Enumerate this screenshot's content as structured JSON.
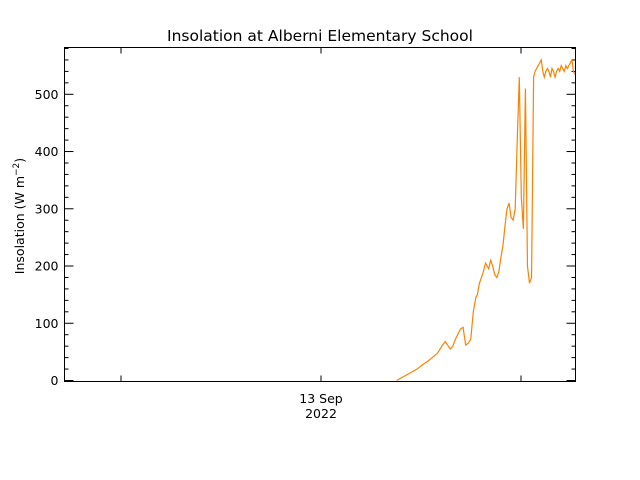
{
  "chart_data": {
    "type": "line",
    "title": "Insolation at Alberni Elementary School",
    "ylabel_main": "Insolation (W m",
    "ylabel_sup": "−2",
    "ylabel_close": ")",
    "xlabel": "",
    "x_tick_label": {
      "day": "13 Sep",
      "year": "2022"
    },
    "ylim": [
      0,
      580
    ],
    "y_ticks": [
      0,
      100,
      200,
      300,
      400,
      500
    ],
    "grid": false,
    "series": [
      {
        "color": "#ff8000",
        "x": [
          0.65,
          0.66,
          0.67,
          0.68,
          0.69,
          0.7,
          0.71,
          0.72,
          0.73,
          0.74,
          0.745,
          0.755,
          0.76,
          0.765,
          0.775,
          0.78,
          0.785,
          0.79,
          0.795,
          0.8,
          0.805,
          0.808,
          0.812,
          0.818,
          0.824,
          0.83,
          0.834,
          0.838,
          0.842,
          0.846,
          0.85,
          0.854,
          0.858,
          0.862,
          0.866,
          0.87,
          0.874,
          0.878,
          0.882,
          0.886,
          0.89,
          0.894,
          0.898,
          0.902,
          0.906,
          0.91,
          0.914,
          0.918,
          0.921,
          0.924,
          0.927,
          0.93,
          0.933,
          0.936,
          0.939,
          0.942,
          0.945,
          0.948,
          0.951,
          0.954,
          0.957,
          0.96,
          0.963,
          0.966,
          0.969,
          0.972,
          0.975,
          0.978,
          0.981,
          0.984,
          0.987,
          0.99,
          0.993,
          0.996,
          0.999
        ],
        "values": [
          0,
          5,
          10,
          15,
          20,
          27,
          33,
          40,
          48,
          62,
          68,
          55,
          60,
          72,
          90,
          93,
          62,
          65,
          72,
          120,
          145,
          150,
          170,
          185,
          205,
          195,
          210,
          200,
          185,
          180,
          190,
          215,
          235,
          270,
          300,
          310,
          285,
          280,
          300,
          420,
          530,
          320,
          265,
          510,
          200,
          170,
          180,
          530,
          540,
          545,
          550,
          555,
          560,
          540,
          530,
          540,
          545,
          540,
          530,
          545,
          540,
          530,
          540,
          545,
          540,
          550,
          545,
          540,
          550,
          545,
          550,
          555,
          560,
          540,
          535
        ]
      }
    ]
  }
}
